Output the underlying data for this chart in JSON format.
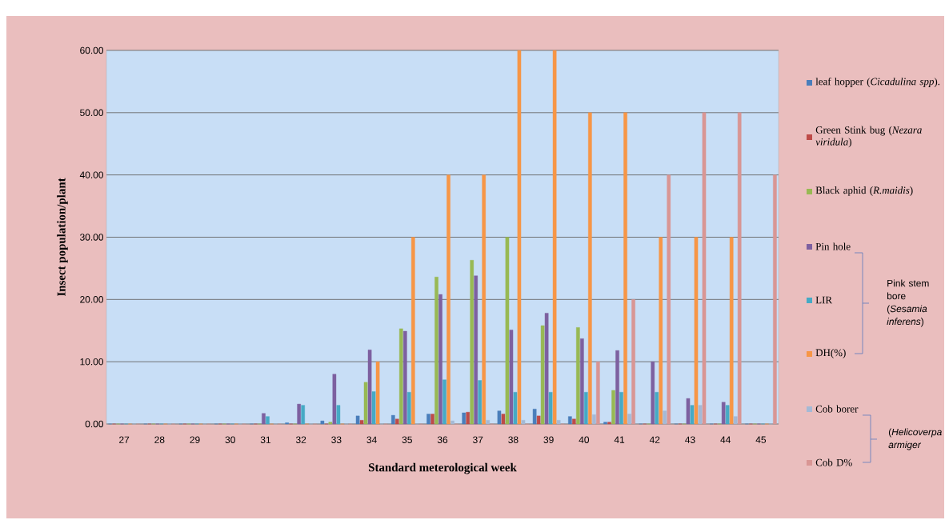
{
  "chart_data": {
    "type": "bar",
    "xlabel": "Standard  meterological week",
    "ylabel": "Insect population/plant",
    "categories": [
      "27",
      "28",
      "29",
      "30",
      "31",
      "32",
      "33",
      "34",
      "35",
      "36",
      "37",
      "38",
      "39",
      "40",
      "41",
      "42",
      "43",
      "44",
      "45"
    ],
    "ylim": [
      0,
      60
    ],
    "yticks": [
      {
        "value": 0,
        "label": "0.00"
      },
      {
        "value": 10,
        "label": "10.00"
      },
      {
        "value": 20,
        "label": "20.00"
      },
      {
        "value": 30,
        "label": "30.00"
      },
      {
        "value": 40,
        "label": "40.00"
      },
      {
        "value": 50,
        "label": "50.00"
      },
      {
        "value": 60,
        "label": "60.00"
      }
    ],
    "grid": "y",
    "legend": "right",
    "series": [
      {
        "name": "leaf hopper (*Cicadulina spp*).",
        "color": "#4a7ebb",
        "values": [
          0,
          0,
          0,
          0,
          0,
          0.2,
          0.5,
          1.3,
          1.4,
          1.6,
          1.8,
          2.1,
          2.4,
          1.2,
          0.3,
          0,
          0,
          0,
          0
        ]
      },
      {
        "name": "Green Stink bug (*Nezara viridula*)",
        "color": "#be4b48",
        "values": [
          0,
          0,
          0,
          0,
          0,
          0,
          0,
          0.6,
          0.8,
          1.6,
          1.9,
          1.6,
          1.3,
          0.8,
          0.3,
          0,
          0,
          0,
          0
        ]
      },
      {
        "name": "Black aphid (*R.maidis*)",
        "color": "#98b954",
        "values": [
          0,
          0,
          0,
          0,
          0,
          0,
          0.3,
          6.7,
          15.3,
          23.6,
          26.3,
          30,
          15.8,
          15.5,
          5.4,
          0,
          0,
          0,
          0
        ]
      },
      {
        "name": "Pin hole",
        "color": "#7d60a0",
        "values": [
          0,
          0,
          0,
          0,
          1.7,
          3.2,
          8.0,
          11.9,
          14.9,
          20.8,
          23.8,
          15.1,
          17.8,
          13.7,
          11.8,
          10,
          4.1,
          3.5,
          0
        ]
      },
      {
        "name": "LIR",
        "color": "#46aac5",
        "values": [
          0,
          0,
          0,
          0,
          1.2,
          3.0,
          3.0,
          5.2,
          5.1,
          7.1,
          7.0,
          5.1,
          5.1,
          5.1,
          5.1,
          5.1,
          3.0,
          3.0,
          0
        ]
      },
      {
        "name": "DH(%)",
        "color": "#f79646",
        "values": [
          0,
          0,
          0,
          0,
          0,
          0,
          0,
          10,
          30,
          40,
          40,
          60,
          60,
          50,
          50,
          30,
          30,
          30,
          0
        ]
      },
      {
        "name": "Cob borer",
        "color": "#a5b9d5",
        "values": [
          0,
          0,
          0,
          0,
          0,
          0,
          0,
          0,
          0,
          0.5,
          0.6,
          0.6,
          0.6,
          1.5,
          1.6,
          2.1,
          3.0,
          1.2,
          0
        ]
      },
      {
        "name": "Cob D%",
        "color": "#d99694",
        "values": [
          0,
          0,
          0,
          0,
          0,
          0,
          0,
          0,
          0,
          0,
          0,
          0,
          0,
          10,
          20,
          40,
          50,
          50,
          40
        ]
      }
    ],
    "annotations": [
      "Pink stem bore (*Sesamia inferens*)",
      "(*Helicoverpa armiger*"
    ]
  }
}
